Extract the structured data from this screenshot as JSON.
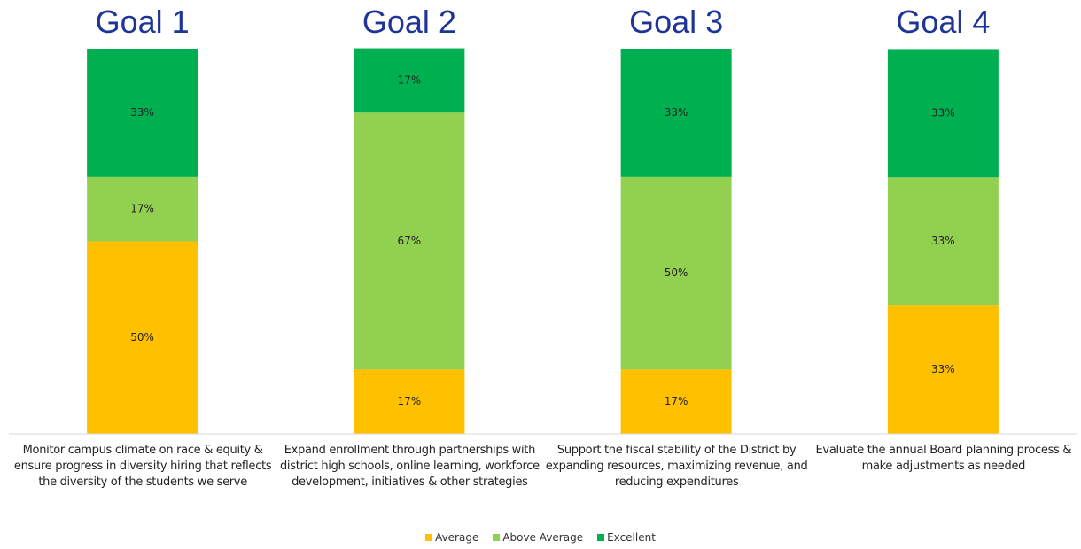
{
  "chart_data": {
    "type": "stacked_bar",
    "goal_labels": [
      "Goal 1",
      "Goal 2",
      "Goal 3",
      "Goal 4"
    ],
    "categories": [
      "Monitor campus climate on race & equity & ensure progress in diversity hiring that reflects the diversity of the students we serve",
      "Expand enrollment through partnerships with district high schools, online learning, workforce development, initiatives & other strategies",
      "Support the fiscal stability of the District by expanding resources, maximizing revenue, and reducing expenditures",
      "Evaluate the annual Board planning process & make adjustments as needed"
    ],
    "series": [
      {
        "name": "Average",
        "color": "#ffc000",
        "values": [
          50,
          16.7,
          16.7,
          33.3
        ],
        "value_labels": [
          "50%",
          "17%",
          "17%",
          "33%"
        ]
      },
      {
        "name": "Above Average",
        "color": "#92d050",
        "values": [
          16.7,
          66.7,
          50,
          33.3
        ],
        "value_labels": [
          "17%",
          "67%",
          "50%",
          "33%"
        ]
      },
      {
        "name": "Excellent",
        "color": "#00b050",
        "values": [
          33.3,
          16.7,
          33.3,
          33.3
        ],
        "value_labels": [
          "33%",
          "17%",
          "33%",
          "33%"
        ]
      }
    ],
    "ylim": [
      0,
      100
    ],
    "legend": "bottom"
  }
}
